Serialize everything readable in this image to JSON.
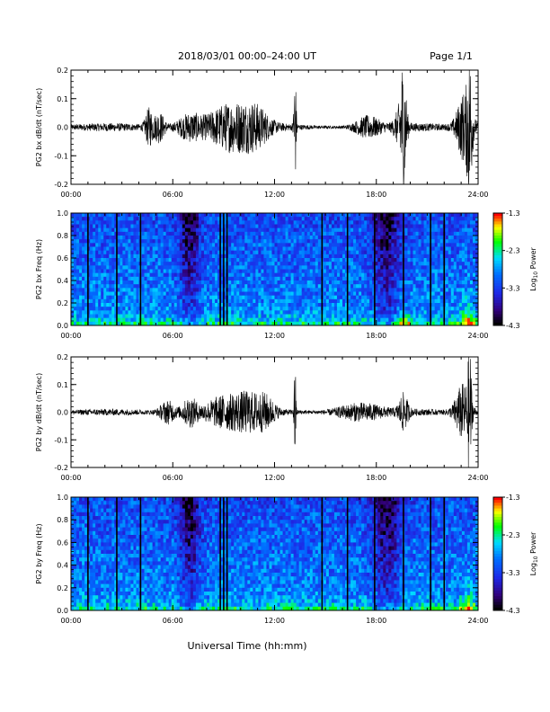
{
  "header": {
    "title": "2018/03/01  00:00–24:00 UT",
    "page": "Page 1/1"
  },
  "xlabel": "Universal Time (hh:mm)",
  "x_ticks": [
    "00:00",
    "06:00",
    "12:00",
    "18:00",
    "24:00"
  ],
  "colorbar": {
    "label_main": "Log",
    "label_sub": "10",
    "label_tail": " Power",
    "ticks": [
      "-1.3",
      "-2.3",
      "-3.3",
      "-4.3"
    ],
    "colors": [
      "#ff0000",
      "#ffa500",
      "#ffff00",
      "#00ff00",
      "#00ffff",
      "#0060ff",
      "#2020a0",
      "#000000"
    ]
  },
  "chart_data": [
    {
      "type": "line",
      "ylabel": "PG2 bx dB/dt (nT/sec)",
      "xlim": [
        0,
        24
      ],
      "ylim": [
        -0.2,
        0.2
      ],
      "y_ticks": [
        "0.2",
        "0.1",
        "0.0",
        "-0.1",
        "-0.2"
      ],
      "base_amplitude": 0.012,
      "bursts": [
        {
          "t": 4.6,
          "w": 0.25,
          "a": 0.06
        },
        {
          "t": 5.2,
          "w": 0.35,
          "a": 0.05
        },
        {
          "t": 7.0,
          "w": 0.8,
          "a": 0.045
        },
        {
          "t": 8.8,
          "w": 1.1,
          "a": 0.05
        },
        {
          "t": 10.0,
          "w": 1.1,
          "a": 0.055
        },
        {
          "t": 11.0,
          "w": 0.8,
          "a": 0.045
        },
        {
          "t": 13.2,
          "w": 0.08,
          "a": 0.21
        },
        {
          "t": 17.5,
          "w": 0.8,
          "a": 0.035
        },
        {
          "t": 19.6,
          "w": 0.18,
          "a": 0.2
        },
        {
          "t": 19.4,
          "w": 0.35,
          "a": 0.06
        },
        {
          "t": 23.2,
          "w": 0.5,
          "a": 0.12
        },
        {
          "t": 23.5,
          "w": 0.15,
          "a": 0.2
        }
      ]
    },
    {
      "type": "heatmap",
      "ylabel": "PG2 bx Freq (Hz)",
      "xlim": [
        0,
        24
      ],
      "ylim": [
        0.0,
        1.0
      ],
      "y_ticks": [
        "1.0",
        "0.8",
        "0.6",
        "0.4",
        "0.2",
        "0.0"
      ],
      "zlim": [
        -4.3,
        -1.3
      ],
      "gaps": [
        1.0,
        2.7,
        4.1,
        8.8,
        9.0,
        9.2,
        14.8,
        16.3,
        17.9,
        19.6,
        21.2,
        22.0
      ],
      "dark_bands": [
        {
          "t": 7.0,
          "w": 0.6
        },
        {
          "t": 18.6,
          "w": 0.8
        }
      ],
      "bright_events": [
        {
          "t": 19.6,
          "w": 0.4,
          "f": 0.08
        },
        {
          "t": 23.4,
          "w": 0.4,
          "f": 0.15
        }
      ]
    },
    {
      "type": "line",
      "ylabel": "PG2 by dB/dt (nT/sec)",
      "xlim": [
        0,
        24
      ],
      "ylim": [
        -0.2,
        0.2
      ],
      "y_ticks": [
        "0.2",
        "0.1",
        "0.0",
        "-0.1",
        "-0.2"
      ],
      "base_amplitude": 0.01,
      "bursts": [
        {
          "t": 5.7,
          "w": 0.5,
          "a": 0.04
        },
        {
          "t": 7.0,
          "w": 0.5,
          "a": 0.05
        },
        {
          "t": 8.8,
          "w": 1.1,
          "a": 0.05
        },
        {
          "t": 10.4,
          "w": 1.0,
          "a": 0.06
        },
        {
          "t": 11.5,
          "w": 0.6,
          "a": 0.04
        },
        {
          "t": 13.2,
          "w": 0.06,
          "a": 0.2
        },
        {
          "t": 17.0,
          "w": 1.5,
          "a": 0.03
        },
        {
          "t": 19.6,
          "w": 0.3,
          "a": 0.06
        },
        {
          "t": 23.1,
          "w": 0.5,
          "a": 0.1
        },
        {
          "t": 23.5,
          "w": 0.12,
          "a": 0.2
        }
      ]
    },
    {
      "type": "heatmap",
      "ylabel": "PG2 by Freq (Hz)",
      "xlim": [
        0,
        24
      ],
      "ylim": [
        0.0,
        1.0
      ],
      "y_ticks": [
        "1.0",
        "0.8",
        "0.6",
        "0.4",
        "0.2",
        "0.0"
      ],
      "zlim": [
        -4.3,
        -1.3
      ],
      "gaps": [
        1.0,
        2.7,
        4.1,
        8.8,
        9.0,
        9.2,
        14.8,
        16.3,
        17.9,
        19.6,
        21.2,
        22.0
      ],
      "dark_bands": [
        {
          "t": 7.0,
          "w": 0.6
        },
        {
          "t": 18.6,
          "w": 0.8
        }
      ],
      "bright_events": [
        {
          "t": 23.4,
          "w": 0.4,
          "f": 0.12
        }
      ]
    }
  ]
}
